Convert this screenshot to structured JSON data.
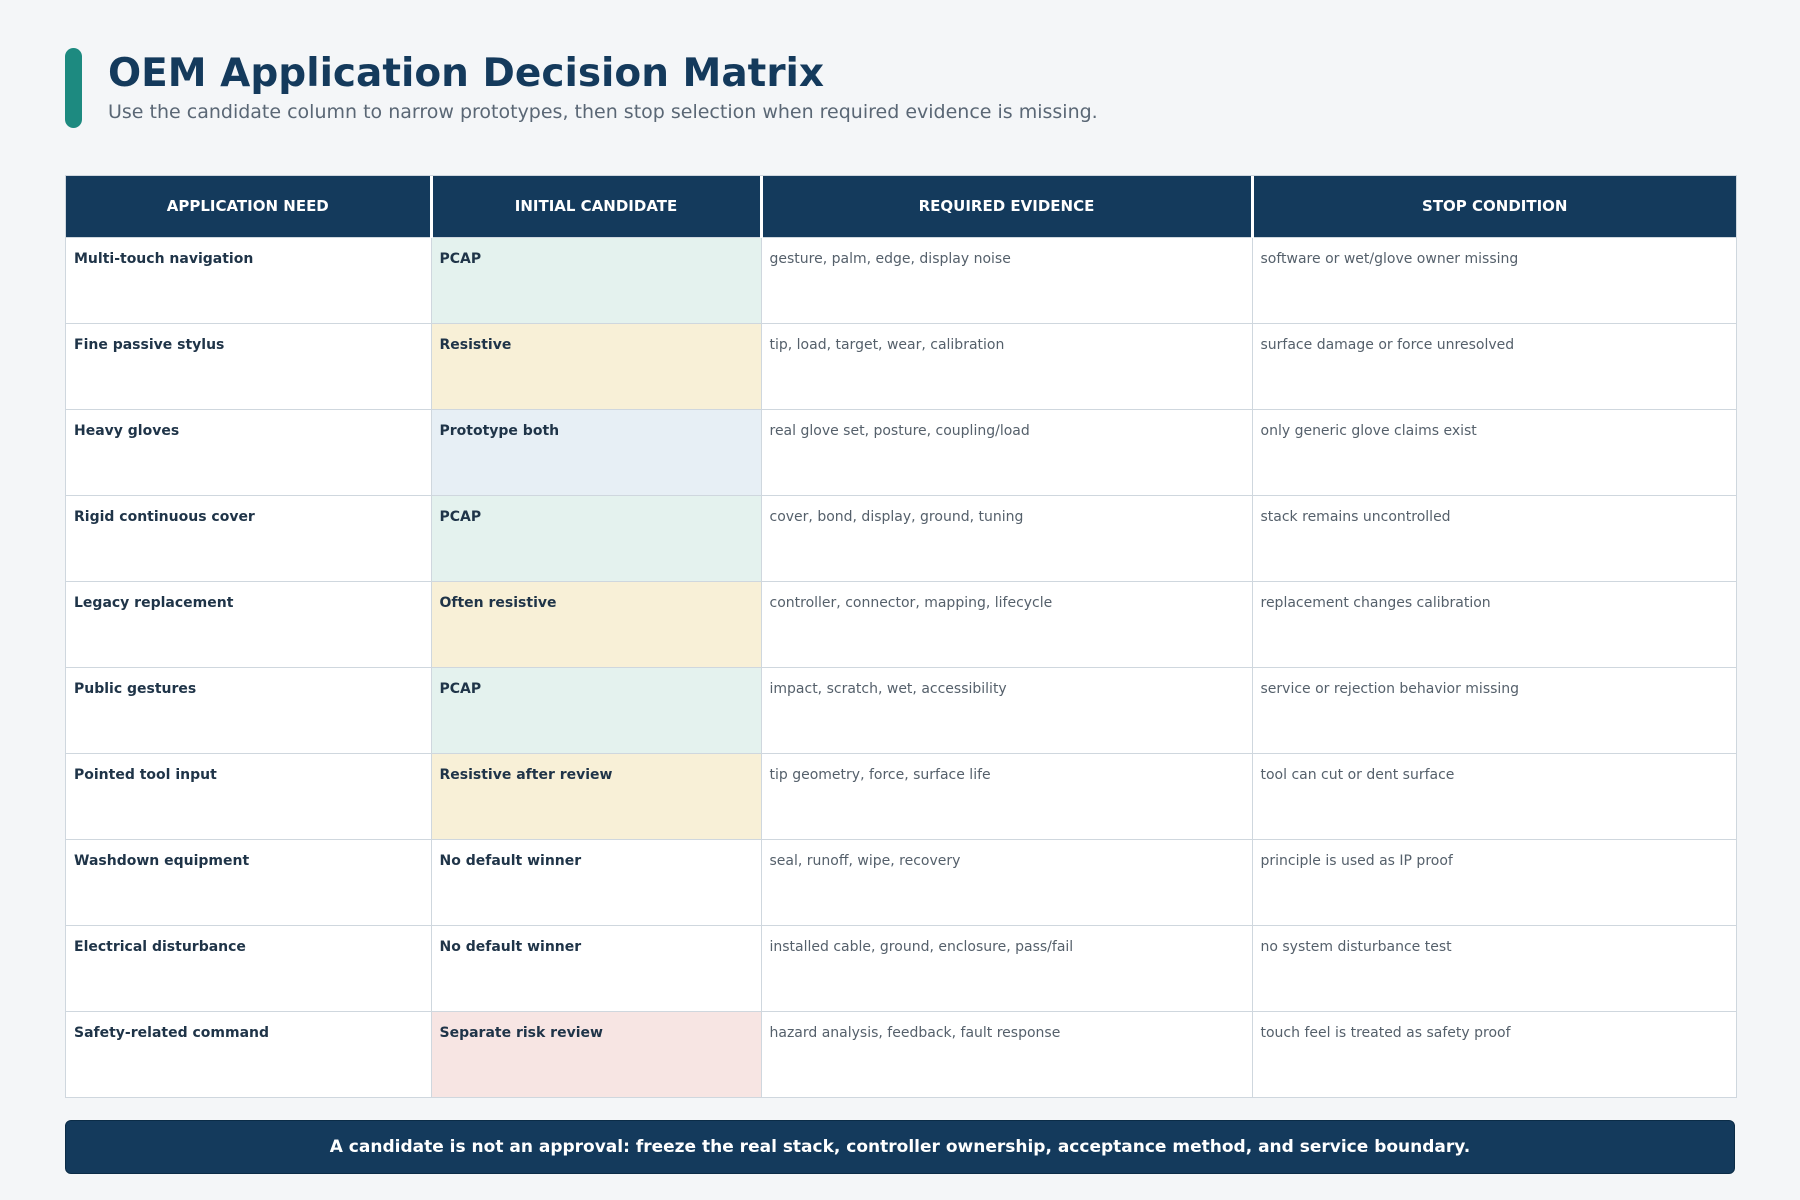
{
  "title": "OEM Application Decision Matrix",
  "subtitle": "Use the candidate column to narrow prototypes, then stop selection when required evidence is missing.",
  "colors": {
    "header_bg": "#143a5c",
    "title_text": "#143a5c",
    "subtitle_text": "#5a6775",
    "accent": "#1d8a80",
    "body_text": "#1f3448",
    "muted_text": "#55606b",
    "tint_teal": "#e4f2ee",
    "tint_yellow": "#f8f0d7",
    "tint_blue": "#e7eff5",
    "tint_pink": "#f7e5e3",
    "tint_none": "#ffffff"
  },
  "table": {
    "columns": [
      "Application Need",
      "Initial Candidate",
      "Required Evidence",
      "Stop Condition"
    ],
    "rows": [
      {
        "need": "Multi-touch navigation",
        "candidate": "PCAP",
        "tint": "teal",
        "evidence": "gesture, palm, edge, display noise",
        "stop": "software or wet/glove owner missing"
      },
      {
        "need": "Fine passive stylus",
        "candidate": "Resistive",
        "tint": "yellow",
        "evidence": "tip, load, target, wear, calibration",
        "stop": "surface damage or force unresolved"
      },
      {
        "need": "Heavy gloves",
        "candidate": "Prototype both",
        "tint": "blue",
        "evidence": "real glove set, posture, coupling/load",
        "stop": "only generic glove claims exist"
      },
      {
        "need": "Rigid continuous cover",
        "candidate": "PCAP",
        "tint": "teal",
        "evidence": "cover, bond, display, ground, tuning",
        "stop": "stack remains uncontrolled"
      },
      {
        "need": "Legacy replacement",
        "candidate": "Often resistive",
        "tint": "yellow",
        "evidence": "controller, connector, mapping, lifecycle",
        "stop": "replacement changes calibration"
      },
      {
        "need": "Public gestures",
        "candidate": "PCAP",
        "tint": "teal",
        "evidence": "impact, scratch, wet, accessibility",
        "stop": "service or rejection behavior missing"
      },
      {
        "need": "Pointed tool input",
        "candidate": "Resistive after review",
        "tint": "yellow",
        "evidence": "tip geometry, force, surface life",
        "stop": "tool can cut or dent surface"
      },
      {
        "need": "Washdown equipment",
        "candidate": "No default winner",
        "tint": "none",
        "evidence": "seal, runoff, wipe, recovery",
        "stop": "principle is used as IP proof"
      },
      {
        "need": "Electrical disturbance",
        "candidate": "No default winner",
        "tint": "none",
        "evidence": "installed cable, ground, enclosure, pass/fail",
        "stop": "no system disturbance test"
      },
      {
        "need": "Safety-related command",
        "candidate": "Separate risk review",
        "tint": "pink",
        "evidence": "hazard analysis, feedback, fault response",
        "stop": "touch feel is treated as safety proof"
      }
    ]
  },
  "footer_note": "A candidate is not an approval: freeze the real stack, controller ownership, acceptance method, and service boundary."
}
